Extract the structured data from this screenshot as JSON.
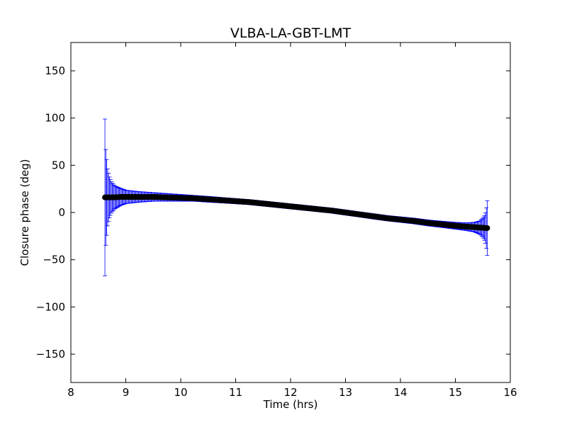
{
  "chart_data": {
    "type": "scatter",
    "title": "VLBA-LA-GBT-LMT",
    "xlabel": "Time (hrs)",
    "ylabel": "Closure phase (deg)",
    "xlim": [
      8,
      16
    ],
    "ylim": [
      -180,
      180
    ],
    "x_ticks": [
      8,
      9,
      10,
      11,
      12,
      13,
      14,
      15,
      16
    ],
    "y_ticks": [
      -150,
      -100,
      -50,
      0,
      50,
      100,
      150
    ],
    "y_tick_labels": [
      "−150",
      "−100",
      "−50",
      "0",
      "50",
      "100",
      "150"
    ],
    "grid": false,
    "legend": "none",
    "series": [
      {
        "marker_color": "#000000",
        "error_bar_color": "#0000ff",
        "x_range": [
          8.62,
          15.58
        ],
        "points": [
          {
            "x": 8.62,
            "y": 16,
            "err": 83
          },
          {
            "x": 8.63,
            "y": 16,
            "err": 55
          },
          {
            "x": 8.65,
            "y": 16,
            "err": 42
          },
          {
            "x": 8.67,
            "y": 16,
            "err": 30
          },
          {
            "x": 8.7,
            "y": 16,
            "err": 22
          },
          {
            "x": 8.74,
            "y": 16,
            "err": 16
          },
          {
            "x": 8.8,
            "y": 16,
            "err": 12
          },
          {
            "x": 8.9,
            "y": 16.5,
            "err": 9
          },
          {
            "x": 9.0,
            "y": 16.5,
            "err": 7
          },
          {
            "x": 9.25,
            "y": 16.5,
            "err": 5.5
          },
          {
            "x": 9.5,
            "y": 16.5,
            "err": 4.5
          },
          {
            "x": 9.75,
            "y": 16,
            "err": 4
          },
          {
            "x": 10.0,
            "y": 15.5,
            "err": 3.5
          },
          {
            "x": 10.25,
            "y": 15,
            "err": 3
          },
          {
            "x": 10.5,
            "y": 14,
            "err": 3
          },
          {
            "x": 10.75,
            "y": 13,
            "err": 2.8
          },
          {
            "x": 11.0,
            "y": 12,
            "err": 2.7
          },
          {
            "x": 11.25,
            "y": 11,
            "err": 2.6
          },
          {
            "x": 11.5,
            "y": 9.5,
            "err": 2.6
          },
          {
            "x": 11.75,
            "y": 8,
            "err": 2.6
          },
          {
            "x": 12.0,
            "y": 6.5,
            "err": 2.6
          },
          {
            "x": 12.25,
            "y": 5,
            "err": 2.6
          },
          {
            "x": 12.5,
            "y": 3.5,
            "err": 2.6
          },
          {
            "x": 12.75,
            "y": 2,
            "err": 2.6
          },
          {
            "x": 13.0,
            "y": 0,
            "err": 2.6
          },
          {
            "x": 13.25,
            "y": -2,
            "err": 2.6
          },
          {
            "x": 13.5,
            "y": -4,
            "err": 2.7
          },
          {
            "x": 13.75,
            "y": -6,
            "err": 2.7
          },
          {
            "x": 14.0,
            "y": -7.5,
            "err": 2.8
          },
          {
            "x": 14.25,
            "y": -9,
            "err": 2.9
          },
          {
            "x": 14.5,
            "y": -11,
            "err": 3
          },
          {
            "x": 14.75,
            "y": -12.5,
            "err": 3.2
          },
          {
            "x": 15.0,
            "y": -14,
            "err": 3.5
          },
          {
            "x": 15.2,
            "y": -15,
            "err": 4
          },
          {
            "x": 15.35,
            "y": -15.5,
            "err": 5
          },
          {
            "x": 15.45,
            "y": -16,
            "err": 7
          },
          {
            "x": 15.5,
            "y": -16,
            "err": 10
          },
          {
            "x": 15.54,
            "y": -16.5,
            "err": 14
          },
          {
            "x": 15.56,
            "y": -16.5,
            "err": 20
          },
          {
            "x": 15.58,
            "y": -16.5,
            "err": 29
          }
        ]
      }
    ]
  }
}
